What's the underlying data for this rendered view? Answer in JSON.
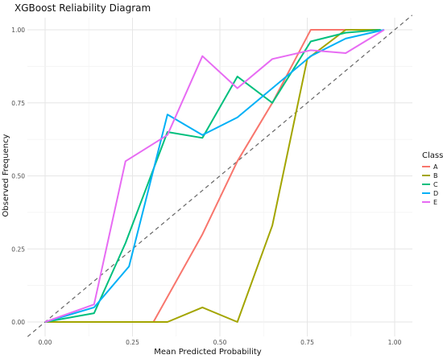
{
  "chart_data": {
    "type": "line",
    "title": "XGBoost Reliability Diagram",
    "xlabel": "Mean Predicted Probability",
    "ylabel": "Observed Frequency",
    "xlim": [
      0,
      1
    ],
    "ylim": [
      0,
      1
    ],
    "x_ticks": [
      "0.00",
      "0.25",
      "0.50",
      "0.75",
      "1.00"
    ],
    "y_ticks": [
      "0.00",
      "0.25",
      "0.50",
      "0.75",
      "1.00"
    ],
    "grid": true,
    "reference_line": {
      "style": "dashed",
      "color": "#666666",
      "x": [
        -0.05,
        1.05
      ],
      "y": [
        -0.05,
        1.05
      ]
    },
    "legend": {
      "title": "Class",
      "position": "right"
    },
    "series": [
      {
        "name": "A",
        "color": "#F8766D",
        "x": [
          0.31,
          0.45,
          0.55,
          0.65,
          0.76,
          0.87,
          0.96
        ],
        "y": [
          0.0,
          0.3,
          0.55,
          0.75,
          1.0,
          1.0,
          1.0
        ]
      },
      {
        "name": "B",
        "color": "#A3A500",
        "x": [
          0.0,
          0.35,
          0.45,
          0.55,
          0.65,
          0.75,
          0.86,
          0.96
        ],
        "y": [
          0.0,
          0.0,
          0.05,
          0.0,
          0.33,
          0.9,
          1.0,
          1.0
        ]
      },
      {
        "name": "C",
        "color": "#00BF7D",
        "x": [
          0.0,
          0.14,
          0.23,
          0.35,
          0.45,
          0.55,
          0.65,
          0.76,
          0.86,
          0.96
        ],
        "y": [
          0.0,
          0.03,
          0.27,
          0.65,
          0.63,
          0.84,
          0.75,
          0.96,
          0.99,
          1.0
        ]
      },
      {
        "name": "D",
        "color": "#00B0F6",
        "x": [
          0.0,
          0.14,
          0.24,
          0.35,
          0.45,
          0.55,
          0.65,
          0.76,
          0.86,
          0.97
        ],
        "y": [
          0.0,
          0.05,
          0.19,
          0.71,
          0.64,
          0.7,
          0.8,
          0.91,
          0.97,
          1.0
        ]
      },
      {
        "name": "E",
        "color": "#E76BF3",
        "x": [
          0.0,
          0.14,
          0.23,
          0.35,
          0.45,
          0.55,
          0.65,
          0.76,
          0.86,
          0.97
        ],
        "y": [
          0.0,
          0.06,
          0.55,
          0.64,
          0.91,
          0.8,
          0.9,
          0.93,
          0.92,
          1.0
        ]
      }
    ]
  }
}
